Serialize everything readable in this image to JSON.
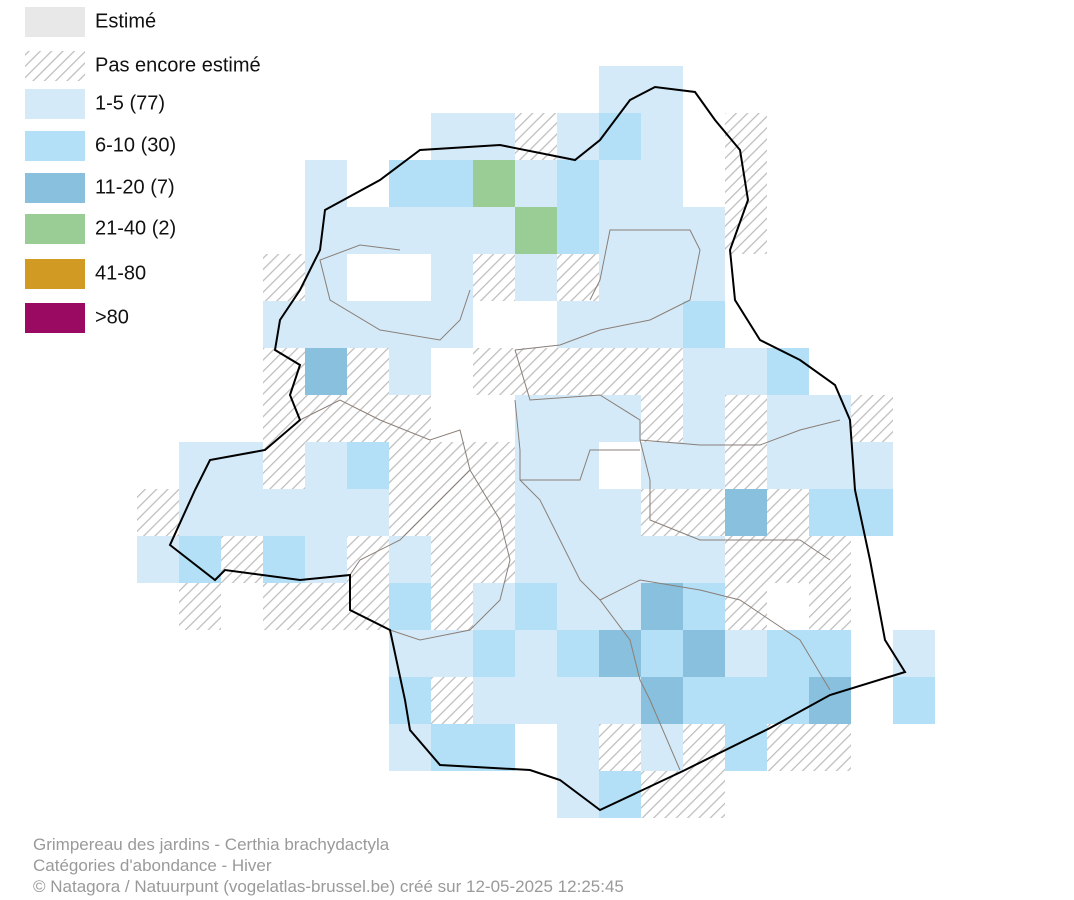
{
  "legend": {
    "items": [
      "Estimé",
      "Pas encore estimé",
      "1-5 (77)",
      "6-10 (30)",
      "11-20 (7)",
      "21-40 (2)",
      "41-80",
      ">80"
    ]
  },
  "footer": {
    "lines": [
      "Grimpereau des jardins - Certhia brachydactyla",
      "Catégories d'abondance - Hiver",
      "© Natagora / Natuurpunt (vogelatlas-brussel.be) créé sur 12-05-2025 12:25:45"
    ]
  }
}
